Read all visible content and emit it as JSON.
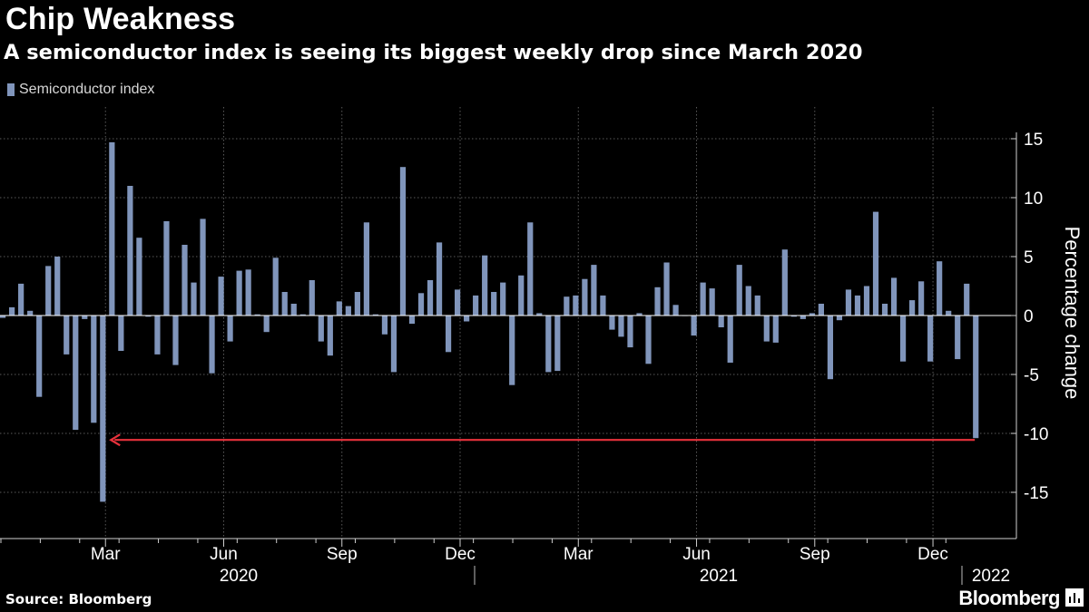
{
  "header": {
    "title": "Chip Weakness",
    "subtitle": "A semiconductor index is seeing its biggest weekly drop since March 2020"
  },
  "legend": {
    "label": "Semiconductor index",
    "color": "#8095bb"
  },
  "footer": {
    "source": "Source: Bloomberg",
    "brand": "Bloomberg"
  },
  "chart_data": {
    "type": "bar",
    "title": "Chip Weakness",
    "subtitle": "A semiconductor index is seeing its biggest weekly drop since March 2020",
    "ylabel": "Percentage change",
    "xlabel": "",
    "ylim": [
      -18.5,
      18
    ],
    "yticks": [
      15,
      10,
      5,
      0,
      -5,
      -10,
      -15
    ],
    "series": [
      {
        "name": "Semiconductor index",
        "color": "#8095bb",
        "values": [
          -0.2,
          0.7,
          2.7,
          0.4,
          -6.9,
          4.2,
          5.0,
          -3.3,
          -9.7,
          -0.3,
          -9.1,
          -15.8,
          14.7,
          -3.0,
          11.0,
          6.6,
          -0.1,
          -3.3,
          8.0,
          -4.2,
          6.0,
          2.8,
          8.2,
          -4.9,
          3.3,
          -2.2,
          3.8,
          3.9,
          0.1,
          -1.4,
          4.9,
          2.0,
          1.0,
          0.1,
          3.0,
          -2.2,
          -3.4,
          1.2,
          0.8,
          2.0,
          7.9,
          0.1,
          -1.6,
          -4.8,
          12.6,
          -0.7,
          1.9,
          3.0,
          6.2,
          -3.1,
          2.2,
          -0.5,
          1.7,
          5.1,
          2.0,
          2.8,
          -5.9,
          3.4,
          7.9,
          0.2,
          -4.8,
          -4.7,
          1.6,
          1.7,
          3.1,
          4.3,
          1.7,
          -1.2,
          -1.8,
          -2.7,
          0.2,
          -4.1,
          2.4,
          4.5,
          0.9,
          0.0,
          -1.7,
          2.8,
          2.3,
          -1.0,
          -4.0,
          4.3,
          2.5,
          1.7,
          -2.2,
          -2.3,
          5.6,
          -0.1,
          -0.3,
          0.2,
          1.0,
          -5.4,
          -0.4,
          2.2,
          1.7,
          2.5,
          8.8,
          1.0,
          3.2,
          -3.9,
          1.3,
          2.9,
          -3.9,
          4.6,
          0.4,
          -3.7,
          2.7,
          -10.4
        ]
      }
    ],
    "month_labels": [
      "Mar",
      "Jun",
      "Sep",
      "Dec",
      "Mar",
      "Jun",
      "Sep",
      "Dec"
    ],
    "month_label_bars": [
      11.5,
      24.5,
      37.5,
      50.5,
      63.5,
      76.5,
      89.5,
      102.5
    ],
    "year_labels": [
      "2020",
      "2021",
      "2022"
    ],
    "annotation": {
      "type": "arrow",
      "description": "red line linking latest weekly drop to March 2020 drop",
      "color": "#e8323c",
      "from_value": -10.4,
      "to_bar": 12
    }
  }
}
